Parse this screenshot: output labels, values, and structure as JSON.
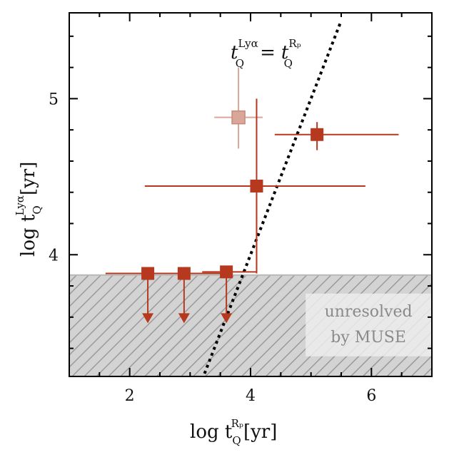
{
  "chart_data": {
    "type": "scatter",
    "xlim": [
      1,
      7
    ],
    "ylim": [
      3.22,
      5.55
    ],
    "xticks": [
      2,
      4,
      6
    ],
    "yticks": [
      4,
      5
    ],
    "xtick_labels": [
      "2",
      "4",
      "6"
    ],
    "ytick_labels": [
      "4",
      "5"
    ],
    "xlabel": {
      "prefix": "log t",
      "sub": "Q",
      "sup": "Rₚ",
      "unit": "[yr]"
    },
    "ylabel": {
      "prefix": "log t",
      "sub": "Q",
      "sup": "Lyα",
      "unit": "[yr]"
    },
    "one_to_one_label": {
      "lhs_sup": "Lyα",
      "lhs_sub": "Q",
      "eq": "=",
      "rhs_sup": "Rₚ",
      "rhs_sub": "Q",
      "base": "t"
    },
    "one_to_one_line": {
      "x_start": 3.2,
      "x_end": 5.5
    },
    "unresolved_limit": 3.87,
    "unresolved_label": [
      "unresolved",
      "by MUSE"
    ],
    "colors": {
      "points": "#b5381f",
      "faded": "#d9a79a",
      "shade": "#d3d3d3",
      "hatch": "#9a9a9a",
      "unresolved_text": "#8a8a8a"
    },
    "measurements": [
      {
        "x": 4.1,
        "y": 4.44,
        "xerr": [
          1.85,
          1.8
        ],
        "yerr": [
          0.56,
          0.56
        ]
      },
      {
        "x": 5.1,
        "y": 4.77,
        "xerr": [
          0.7,
          1.35
        ],
        "yerr": [
          0.1,
          0.08
        ]
      }
    ],
    "faded_measurements": [
      {
        "x": 3.8,
        "y": 4.88,
        "xerr": [
          0.4,
          0.4
        ],
        "yerr": [
          0.2,
          0.32
        ]
      }
    ],
    "upper_limits": [
      {
        "x": 2.3,
        "y": 3.88,
        "xerr": [
          0.7,
          0.6
        ],
        "arrow_to": 3.57
      },
      {
        "x": 2.9,
        "y": 3.88,
        "xerr": [
          0.6,
          0.6
        ],
        "arrow_to": 3.57
      },
      {
        "x": 3.6,
        "y": 3.89,
        "xerr": [
          0.4,
          0.5
        ],
        "arrow_to": 3.57
      }
    ],
    "ylimit_step_connector": {
      "x": 4.1,
      "y_from": 3.89,
      "y_to": 4.44
    }
  }
}
